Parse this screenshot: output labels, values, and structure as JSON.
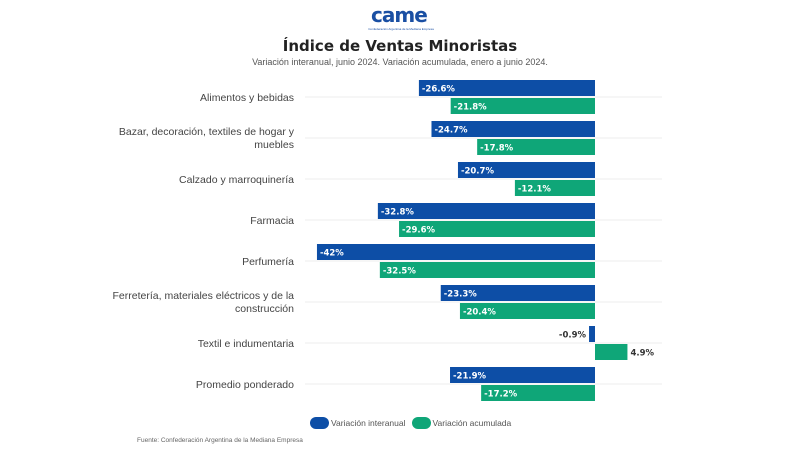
{
  "logo": {
    "text": "came",
    "subtitle": "Confederación Argentina de la Mediana Empresa"
  },
  "colors": {
    "interanual": "#0d4ea6",
    "acumulada": "#0fa678",
    "grid": "#eeeeee"
  },
  "chart_data": {
    "type": "bar",
    "orientation": "horizontal",
    "title": "Índice de Ventas Minoristas",
    "subtitle": "Variación interanual, junio 2024. Variación acumulada, enero a junio 2024.",
    "categories": [
      [
        "Alimentos y bebidas"
      ],
      [
        "Bazar, decoración, textiles de hogar y",
        "muebles"
      ],
      [
        "Calzado y marroquinería"
      ],
      [
        "Farmacia"
      ],
      [
        "Perfumería"
      ],
      [
        "Ferretería, materiales eléctricos y de la",
        "construcción"
      ],
      [
        "Textil e indumentaria"
      ],
      [
        "Promedio ponderado"
      ]
    ],
    "series": [
      {
        "name": "Variación interanual",
        "values": [
          -26.6,
          -24.7,
          -20.7,
          -32.8,
          -42,
          -23.3,
          -0.9,
          -21.9
        ],
        "labels": [
          "-26.6%",
          "-24.7%",
          "-20.7%",
          "-32.8%",
          "-42%",
          "-23.3%",
          "-0.9%",
          "-21.9%"
        ]
      },
      {
        "name": "Variación acumulada",
        "values": [
          -21.8,
          -17.8,
          -12.1,
          -29.6,
          -32.5,
          -20.4,
          4.9,
          -17.2
        ],
        "labels": [
          "-21.8%",
          "-17.8%",
          "-12.1%",
          "-29.6%",
          "-32.5%",
          "-20.4%",
          "4.9%",
          "-17.2%"
        ]
      }
    ],
    "xlim": [
      -42,
      5
    ],
    "grid": true,
    "legend": "bottom-center",
    "xlabel": "",
    "ylabel": ""
  },
  "legend": {
    "interanual": "Variación interanual",
    "acumulada": "Variación acumulada"
  },
  "source": "Fuente: Confederación Argentina de la Mediana Empresa"
}
